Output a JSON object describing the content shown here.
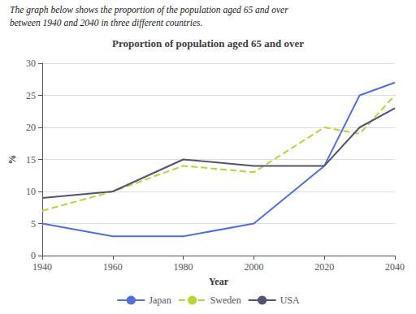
{
  "chart_data": {
    "type": "line",
    "title": "Proportion of population aged 65 and over",
    "annotations": [
      "The graph below shows the proportion of the population aged 65 and over",
      "between 1940 and 2040 in three different countries."
    ],
    "xlabel": "Year",
    "ylabel": "%",
    "x": [
      1940,
      1960,
      1980,
      2000,
      2020,
      2030,
      2040
    ],
    "series": [
      {
        "name": "Japan",
        "values": [
          5,
          3,
          3,
          5,
          14,
          25,
          27
        ],
        "line_style": "solid"
      },
      {
        "name": "Sweden",
        "values": [
          7,
          10,
          14,
          13,
          20,
          19,
          25
        ],
        "line_style": "dashed"
      },
      {
        "name": "USA",
        "values": [
          9,
          10,
          15,
          14,
          14,
          20,
          23
        ],
        "line_style": "solid"
      }
    ],
    "xlim": [
      1940,
      2040
    ],
    "xticks": [
      1940,
      1960,
      1980,
      2000,
      2020,
      2040
    ],
    "ylim": [
      0,
      30
    ],
    "yticks": [
      0,
      5,
      10,
      15,
      20,
      25,
      30
    ],
    "grid": true,
    "legend": "bottom"
  }
}
